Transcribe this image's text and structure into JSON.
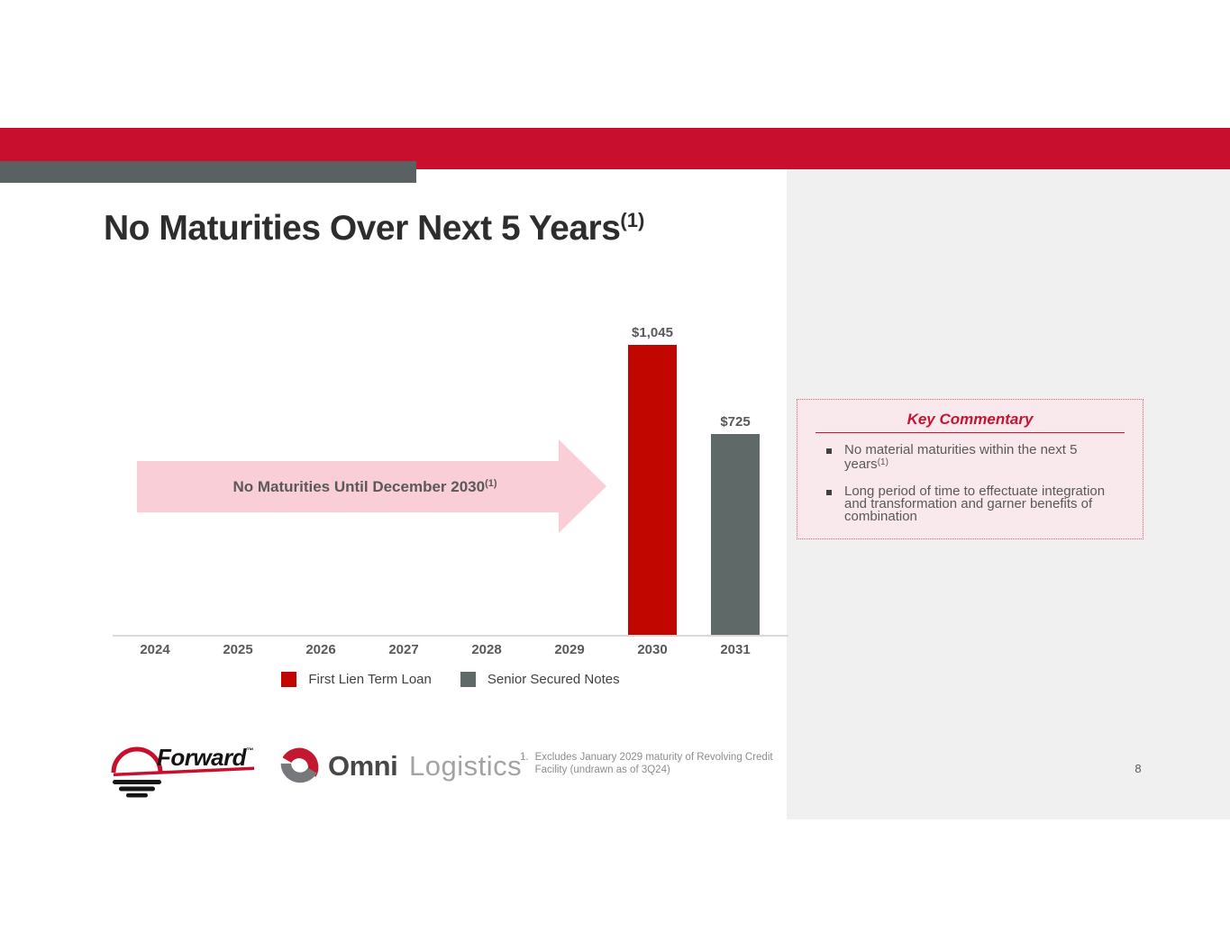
{
  "slide": {
    "title": {
      "text": "No Maturities Over Next 5 Years",
      "sup": "(1)"
    },
    "page_number": "8"
  },
  "colors": {
    "banner_red": "#c8102e",
    "accent_gray": "#5a6163",
    "panel_gray": "#f0f0f0",
    "arrow_pink": "#f9ced7",
    "commentary_bg": "#f9e9ec",
    "commentary_red": "#c31432",
    "bar_red": "#c10600",
    "bar_gray": "#5e6968"
  },
  "chart_data": {
    "type": "bar",
    "categories": [
      "2024",
      "2025",
      "2026",
      "2027",
      "2028",
      "2029",
      "2030",
      "2031"
    ],
    "series": [
      {
        "name": "First Lien Term Loan",
        "color": "#c10600",
        "values": [
          null,
          null,
          null,
          null,
          null,
          null,
          1045,
          null
        ]
      },
      {
        "name": "Senior Secured Notes",
        "color": "#5e6968",
        "values": [
          null,
          null,
          null,
          null,
          null,
          null,
          null,
          725
        ]
      }
    ],
    "data_labels": [
      "",
      "",
      "",
      "",
      "",
      "",
      "$1,045",
      "$725"
    ],
    "title": "",
    "xlabel": "",
    "ylabel": "",
    "ylim": [
      0,
      1120
    ],
    "grid": false,
    "legend_position": "bottom"
  },
  "arrow": {
    "text": "No Maturities Until December 2030",
    "sup": "(1)"
  },
  "commentary": {
    "title": "Key Commentary",
    "bullets": [
      {
        "text": "No material maturities within the next 5 years",
        "sup": "(1)"
      },
      {
        "text": "Long period of time to effectuate integration and transformation and garner benefits of combination",
        "sup": ""
      }
    ]
  },
  "logos": {
    "forward": {
      "word": "Forward",
      "tm": "™"
    },
    "omni": {
      "bold": "Omni",
      "light": "Logistics",
      "reg": "°"
    }
  },
  "footnote": {
    "number": "1.",
    "text": "Excludes January 2029 maturity of Revolving Credit Facility (undrawn as of 3Q24)"
  }
}
